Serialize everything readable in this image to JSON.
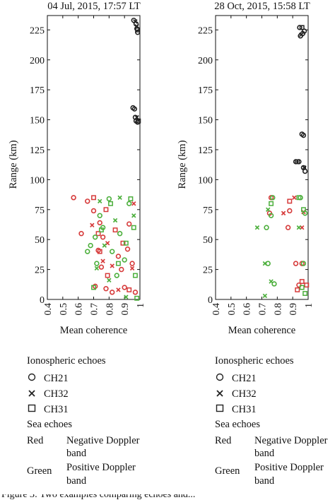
{
  "chart_data": [
    {
      "type": "scatter",
      "title": "04 Jul, 2015, 17:57 LT",
      "xlabel": "Mean coherence",
      "ylabel": "Range (km)",
      "xlim": [
        0.4,
        1.0
      ],
      "ylim": [
        0,
        237
      ],
      "xticks": [
        "0.4",
        "0.5",
        "0.6",
        "0.7",
        "0.8",
        "0.9",
        "1"
      ],
      "yticks": [
        "0",
        "25",
        "50",
        "75",
        "100",
        "125",
        "150",
        "175",
        "200",
        "225"
      ],
      "grid": false,
      "series": [
        {
          "name": "Ionospheric CH21",
          "color": "#222222",
          "marker": "circle",
          "points": [
            [
              0.96,
              233
            ],
            [
              0.975,
              230
            ],
            [
              0.98,
              226
            ],
            [
              0.985,
              223
            ],
            [
              0.955,
              160
            ],
            [
              0.965,
              159
            ],
            [
              0.97,
              152
            ],
            [
              0.975,
              149
            ],
            [
              0.985,
              148
            ]
          ]
        },
        {
          "name": "Ionospheric CH32",
          "color": "#222222",
          "marker": "x",
          "points": [
            [
              0.97,
              232
            ],
            [
              0.98,
              228
            ],
            [
              0.98,
              152
            ]
          ]
        },
        {
          "name": "Ionospheric CH31",
          "color": "#222222",
          "marker": "square",
          "points": [
            [
              0.985,
              225
            ],
            [
              0.99,
              149
            ]
          ]
        },
        {
          "name": "Negative Doppler band CH21",
          "color": "#d63a3a",
          "marker": "circle",
          "points": [
            [
              0.57,
              85
            ],
            [
              0.62,
              55
            ],
            [
              0.66,
              82
            ],
            [
              0.7,
              74
            ],
            [
              0.74,
              64
            ],
            [
              0.76,
              52
            ],
            [
              0.73,
              41
            ],
            [
              0.75,
              27
            ],
            [
              0.71,
              11
            ],
            [
              0.78,
              9
            ],
            [
              0.82,
              6
            ],
            [
              0.86,
              36
            ],
            [
              0.88,
              25
            ],
            [
              0.9,
              10
            ],
            [
              0.92,
              42
            ],
            [
              0.93,
              63
            ],
            [
              0.95,
              30
            ],
            [
              0.97,
              6
            ]
          ]
        },
        {
          "name": "Negative Doppler band CH32",
          "color": "#d63a3a",
          "marker": "x",
          "points": [
            [
              0.69,
              62
            ],
            [
              0.76,
              32
            ],
            [
              0.79,
              47
            ],
            [
              0.82,
              28
            ],
            [
              0.86,
              8
            ],
            [
              0.95,
              26
            ],
            [
              0.96,
              80
            ]
          ]
        },
        {
          "name": "Negative Doppler band CH31",
          "color": "#d63a3a",
          "marker": "square",
          "points": [
            [
              0.7,
              85
            ],
            [
              0.73,
              55
            ],
            [
              0.74,
              40
            ],
            [
              0.78,
              75
            ],
            [
              0.79,
              20
            ],
            [
              0.84,
              58
            ],
            [
              0.89,
              47
            ],
            [
              0.93,
              8
            ]
          ]
        },
        {
          "name": "Positive Doppler band CH21",
          "color": "#4caf3c",
          "marker": "circle",
          "points": [
            [
              0.66,
              40
            ],
            [
              0.68,
              45
            ],
            [
              0.71,
              52
            ],
            [
              0.72,
              30
            ],
            [
              0.74,
              70
            ],
            [
              0.76,
              60
            ],
            [
              0.8,
              84
            ],
            [
              0.82,
              40
            ],
            [
              0.85,
              20
            ],
            [
              0.87,
              55
            ],
            [
              0.9,
              33
            ],
            [
              0.93,
              80
            ]
          ]
        },
        {
          "name": "Positive Doppler band CH32",
          "color": "#4caf3c",
          "marker": "x",
          "points": [
            [
              0.72,
              26
            ],
            [
              0.74,
              82
            ],
            [
              0.77,
              45
            ],
            [
              0.8,
              16
            ],
            [
              0.84,
              66
            ],
            [
              0.87,
              85
            ],
            [
              0.91,
              2
            ],
            [
              0.96,
              70
            ]
          ]
        },
        {
          "name": "Positive Doppler band CH31",
          "color": "#4caf3c",
          "marker": "square",
          "points": [
            [
              0.7,
              10
            ],
            [
              0.75,
              58
            ],
            [
              0.81,
              80
            ],
            [
              0.86,
              30
            ],
            [
              0.91,
              47
            ],
            [
              0.94,
              84
            ],
            [
              0.96,
              60
            ],
            [
              0.97,
              20
            ],
            [
              0.98,
              1
            ]
          ]
        }
      ]
    },
    {
      "type": "scatter",
      "title": "28 Oct, 2015, 15:58 LT",
      "xlabel": "Mean coherence",
      "ylabel": "Range (km)",
      "xlim": [
        0.4,
        1.0
      ],
      "ylim": [
        0,
        237
      ],
      "xticks": [
        "0.4",
        "0.5",
        "0.6",
        "0.7",
        "0.8",
        "0.9",
        "1"
      ],
      "yticks": [
        "0",
        "25",
        "50",
        "75",
        "100",
        "125",
        "150",
        "175",
        "200",
        "225"
      ],
      "grid": false,
      "series": [
        {
          "name": "Ionospheric CH21",
          "color": "#222222",
          "marker": "circle",
          "points": [
            [
              0.945,
              227
            ],
            [
              0.95,
              220
            ],
            [
              0.965,
              222
            ],
            [
              0.975,
              224
            ],
            [
              0.96,
              138
            ],
            [
              0.97,
              137
            ],
            [
              0.92,
              115
            ],
            [
              0.94,
              115
            ],
            [
              0.97,
              110
            ],
            [
              0.98,
              107
            ]
          ]
        },
        {
          "name": "Ionospheric CH32",
          "color": "#222222",
          "marker": "x",
          "points": [
            [
              0.955,
              221
            ],
            [
              0.975,
              110
            ]
          ]
        },
        {
          "name": "Ionospheric CH31",
          "color": "#222222",
          "marker": "square",
          "points": [
            [
              0.96,
              227
            ],
            [
              0.93,
              115
            ]
          ]
        },
        {
          "name": "Negative Doppler band CH21",
          "color": "#d63a3a",
          "marker": "circle",
          "points": [
            [
              0.76,
              85
            ],
            [
              0.75,
              72
            ],
            [
              0.88,
              74
            ],
            [
              0.87,
              60
            ],
            [
              0.92,
              30
            ],
            [
              0.94,
              12
            ],
            [
              0.96,
              30
            ]
          ]
        },
        {
          "name": "Negative Doppler band CH32",
          "color": "#d63a3a",
          "marker": "x",
          "points": [
            [
              0.91,
              85
            ],
            [
              0.84,
              72
            ],
            [
              0.96,
              60
            ],
            [
              0.97,
              73
            ]
          ]
        },
        {
          "name": "Negative Doppler band CH31",
          "color": "#d63a3a",
          "marker": "square",
          "points": [
            [
              0.88,
              82
            ],
            [
              0.93,
              8
            ],
            [
              0.96,
              15
            ],
            [
              0.99,
              12
            ]
          ]
        },
        {
          "name": "Positive Doppler band CH21",
          "color": "#4caf3c",
          "marker": "circle",
          "points": [
            [
              0.73,
              60
            ],
            [
              0.74,
              30
            ],
            [
              0.76,
              70
            ],
            [
              0.77,
              85
            ],
            [
              0.78,
              13
            ],
            [
              0.95,
              85
            ],
            [
              0.97,
              30
            ],
            [
              0.98,
              72
            ]
          ]
        },
        {
          "name": "Positive Doppler band CH32",
          "color": "#4caf3c",
          "marker": "x",
          "points": [
            [
              0.67,
              60
            ],
            [
              0.72,
              30
            ],
            [
              0.74,
              75
            ],
            [
              0.76,
              15
            ],
            [
              0.72,
              3
            ],
            [
              0.94,
              60
            ]
          ]
        },
        {
          "name": "Positive Doppler band CH31",
          "color": "#4caf3c",
          "marker": "square",
          "points": [
            [
              0.76,
              80
            ],
            [
              0.94,
              85
            ],
            [
              0.96,
              10
            ],
            [
              0.97,
              75
            ],
            [
              0.98,
              5
            ]
          ]
        }
      ]
    }
  ],
  "legends": [
    {
      "iono_header": "Ionospheric echoes",
      "ch21": "CH21",
      "ch32": "CH32",
      "ch31": "CH31",
      "sea_header": "Sea echoes",
      "red_label": "Red",
      "red_desc_1": "Negative Doppler",
      "red_desc_2": "band",
      "green_label": "Green",
      "green_desc_1": "Positive Doppler",
      "green_desc_2": "band"
    },
    {
      "iono_header": "Ionospheric echoes",
      "ch21": "CH21",
      "ch32": "CH32",
      "ch31": "CH31",
      "sea_header": "Sea echoes",
      "red_label": "Red",
      "red_desc_1": "Negative Doppler",
      "red_desc_2": "band",
      "green_label": "Green",
      "green_desc_1": "Positive Doppler",
      "green_desc_2": "band"
    }
  ],
  "caption_fragment": "Figure 3: Two examples comparing echoes and..."
}
